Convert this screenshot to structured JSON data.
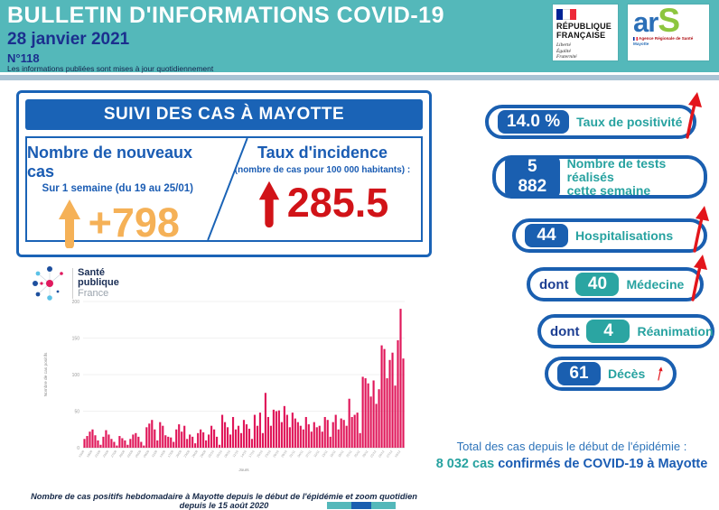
{
  "header": {
    "title": "BULLETIN D'INFORMATIONS COVID-19",
    "date": "28 janvier 2021",
    "issue": "N°118",
    "note": "Les informations publiées sont mises à jour quotidiennement"
  },
  "logos": {
    "republique": {
      "line1": "RÉPUBLIQUE",
      "line2": "FRANÇAISE",
      "motto1": "Liberté",
      "motto2": "Égalité",
      "motto3": "Fraternité"
    },
    "ars": {
      "ar": "ar",
      "s": "S",
      "sub": "Agence Régionale de Santé",
      "region": "Mayotte"
    },
    "spf": {
      "line1": "Santé",
      "line2": "publique",
      "line3": "France"
    }
  },
  "case_panel": {
    "title": "SUIVI DES CAS À MAYOTTE",
    "left": {
      "heading": "Nombre de nouveaux cas",
      "subheading": "Sur 1 semaine (du 19 au 25/01)",
      "value": "+798",
      "trend": "up"
    },
    "right": {
      "heading": "Taux d'incidence",
      "subheading": "(nombre de cas pour 100 000 habitants) :",
      "value": "285.5",
      "trend": "up"
    }
  },
  "stats": [
    {
      "prefix": "",
      "value": "14.0 %",
      "label": "Taux de positivité",
      "label2": "",
      "trend": "up"
    },
    {
      "prefix": "",
      "value": "5 882",
      "label": "Nombre de tests réalisés",
      "label2": "cette semaine",
      "trend": "none"
    },
    {
      "prefix": "",
      "value": "44",
      "label": "Hospitalisations",
      "label2": "",
      "trend": "up"
    },
    {
      "prefix": "dont",
      "value": "40",
      "label": "Médecine",
      "label2": "",
      "trend": "up"
    },
    {
      "prefix": "dont",
      "value": "4",
      "label": "Réanimation",
      "label2": "",
      "trend": "stable"
    },
    {
      "prefix": "",
      "value": "61",
      "label": "Décès",
      "label2": "",
      "trend": "up"
    }
  ],
  "total": {
    "line1": "Total des cas depuis le début de l'épidémie :",
    "highlight": "8 032 cas",
    "rest": " confirmés de COVID-19 à Mayotte"
  },
  "chart_caption": "Nombre de cas positifs hebdomadaire à Mayotte depuis le début de l'épidémie et zoom quotidien depuis le 15 août 2020",
  "colors": {
    "header_teal": "#54b8ba",
    "panel_blue": "#1a63b6",
    "pill_blue": "#1a5fb0",
    "teal_box": "#2ba5a2",
    "label_teal": "#27a2a0",
    "orange": "#f5b157",
    "red": "#d11318",
    "green_stable": "#a9cb3d",
    "bar_pink": "#e0175a"
  },
  "chart_data": {
    "type": "bar",
    "title": "",
    "ylabel": "Nombre de cas positifs",
    "xlabel": "Jours",
    "ylim": [
      0,
      200
    ],
    "yticks": [
      0,
      50,
      100,
      150,
      200
    ],
    "bar_color": "#e0175a",
    "grid": true,
    "legend": "none",
    "start_date": "2020-08-15",
    "x_unit": "days",
    "values": [
      12,
      16,
      22,
      25,
      17,
      10,
      4,
      15,
      24,
      18,
      12,
      8,
      3,
      16,
      13,
      10,
      4,
      12,
      18,
      20,
      15,
      8,
      3,
      28,
      33,
      38,
      25,
      10,
      35,
      30,
      17,
      15,
      14,
      8,
      25,
      32,
      22,
      30,
      12,
      18,
      15,
      6,
      20,
      25,
      21,
      10,
      18,
      30,
      25,
      15,
      4,
      45,
      35,
      28,
      18,
      42,
      25,
      30,
      20,
      38,
      32,
      26,
      12,
      45,
      30,
      48,
      20,
      75,
      42,
      30,
      52,
      50,
      51,
      35,
      57,
      45,
      28,
      48,
      40,
      35,
      30,
      25,
      42,
      32,
      22,
      35,
      28,
      30,
      22,
      42,
      38,
      15,
      35,
      45,
      25,
      40,
      38,
      30,
      67,
      42,
      45,
      48,
      20,
      97,
      95,
      88,
      70,
      92,
      60,
      80,
      140,
      135,
      95,
      120,
      130,
      85,
      147,
      190,
      122
    ]
  }
}
